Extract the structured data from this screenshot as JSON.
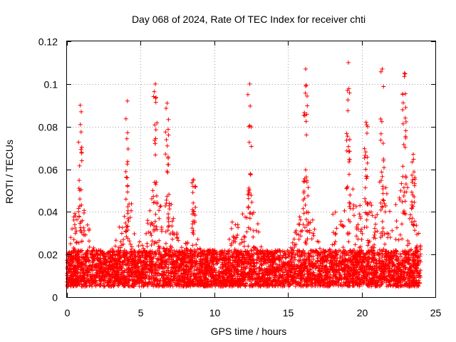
{
  "chart_data": {
    "type": "scatter",
    "title": "Day 068 of 2024, Rate Of TEC Index for receiver chti",
    "xlabel": "GPS time / hours",
    "ylabel": "ROTI / TECUs",
    "xlim": [
      0,
      25
    ],
    "ylim": [
      0,
      0.12
    ],
    "x_ticks": [
      0,
      5,
      10,
      15,
      20,
      25
    ],
    "x_tick_labels": [
      "0",
      "5",
      "10",
      "15",
      "20",
      "25"
    ],
    "y_ticks": [
      0,
      0.02,
      0.04,
      0.06,
      0.08,
      0.1,
      0.12
    ],
    "y_tick_labels": [
      "0",
      "0.02",
      "0.04",
      "0.06",
      "0.08",
      "0.1",
      "0.12"
    ],
    "grid": true,
    "marker": "plus",
    "color": "#ff0000",
    "series": [
      {
        "name": "ROTI",
        "x_range": [
          0,
          24
        ],
        "baseline_band": [
          0.005,
          0.022
        ],
        "notable_peaks": [
          {
            "x": 0.9,
            "y": 0.09
          },
          {
            "x": 4.1,
            "y": 0.092
          },
          {
            "x": 6.0,
            "y": 0.1
          },
          {
            "x": 6.8,
            "y": 0.091
          },
          {
            "x": 8.6,
            "y": 0.055
          },
          {
            "x": 12.4,
            "y": 0.1
          },
          {
            "x": 16.2,
            "y": 0.107
          },
          {
            "x": 19.1,
            "y": 0.11
          },
          {
            "x": 20.3,
            "y": 0.082
          },
          {
            "x": 21.4,
            "y": 0.107
          },
          {
            "x": 22.9,
            "y": 0.105
          },
          {
            "x": 23.5,
            "y": 0.067
          }
        ]
      }
    ]
  }
}
